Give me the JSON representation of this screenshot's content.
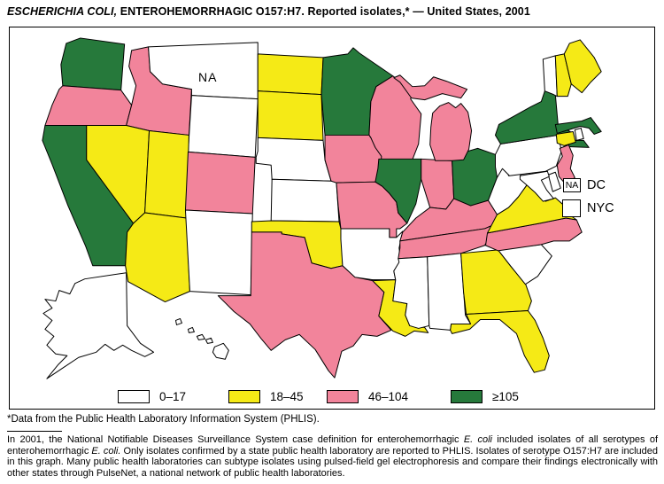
{
  "title": {
    "segments": [
      {
        "text": "ESCHERICHIA COLI,",
        "italic": true
      },
      {
        "text": " ENTEROHEMORRHAGIC O157:H7. Reported isolates,* — United States, 2001",
        "italic": false
      }
    ]
  },
  "map": {
    "montana_label": "NA",
    "insets": [
      {
        "box_text": "NA",
        "label": "DC"
      },
      {
        "box_text": "",
        "label": "NYC"
      }
    ]
  },
  "legend": {
    "items": [
      "0–17",
      "18–45",
      "46–104",
      "≥105"
    ]
  },
  "footnote": "*Data from the Public Health Laboratory Information System (PHLIS).",
  "description": {
    "segments": [
      {
        "text": "In 2001, the National Notifiable Diseases Surveillance System case definition for enterohemorrhagic ",
        "italic": false
      },
      {
        "text": "E. coli",
        "italic": true
      },
      {
        "text": " included isolates of all serotypes of enterohemorrhagic ",
        "italic": false
      },
      {
        "text": "E. coli.",
        "italic": true
      },
      {
        "text": " Only isolates confirmed by a state public health laboratory are reported to PHLIS. Isolates of serotype O157:H7 are included in this graph. Many public health laboratories can subtype isolates using pulsed-field gel electrophoresis and compare their findings electronically with other states through PulseNet, a national network of public health laboratories.",
        "italic": false
      }
    ]
  },
  "chart_data": {
    "type": "choropleth",
    "title": "ESCHERICHIA COLI, ENTEROHEMORRHAGIC O157:H7. Reported isolates — United States, 2001",
    "unit": "reported isolates per state",
    "categories": [
      "0–17",
      "18–45",
      "46–104",
      "≥105"
    ],
    "category_colors": {
      "0–17": "#FFFFFF",
      "18–45": "#F5EA16",
      "46–104": "#F2849B",
      "≥105": "#26793B",
      "NA": "#FFFFFF"
    },
    "state_categories": {
      "WA": "≥105",
      "OR": "46–104",
      "CA": "≥105",
      "NV": "18–45",
      "ID": "46–104",
      "MT": "NA",
      "WY": "0–17",
      "UT": "18–45",
      "CO": "46–104",
      "AZ": "18–45",
      "NM": "0–17",
      "ND": "18–45",
      "SD": "18–45",
      "NE": "0–17",
      "KS": "0–17",
      "OK": "18–45",
      "TX": "46–104",
      "MN": "≥105",
      "IA": "46–104",
      "MO": "46–104",
      "AR": "0–17",
      "LA": "18–45",
      "WI": "46–104",
      "MI": "46–104",
      "IL": "≥105",
      "IN": "46–104",
      "OH": "≥105",
      "KY": "46–104",
      "TN": "46–104",
      "MS": "0–17",
      "AL": "0–17",
      "GA": "18–45",
      "FL": "18–45",
      "SC": "0–17",
      "NC": "46–104",
      "VA": "18–45",
      "WV": "0–17",
      "PA": "0–17",
      "NY": "≥105",
      "NJ": "46–104",
      "DE": "0–17",
      "MD": "0–17",
      "VT": "0–17",
      "NH": "18–45",
      "ME": "18–45",
      "MA": "≥105",
      "CT": "18–45",
      "RI": "0–17",
      "AK": "0–17",
      "HI": "0–17",
      "DC": "NA",
      "NYC": "0–17"
    }
  }
}
